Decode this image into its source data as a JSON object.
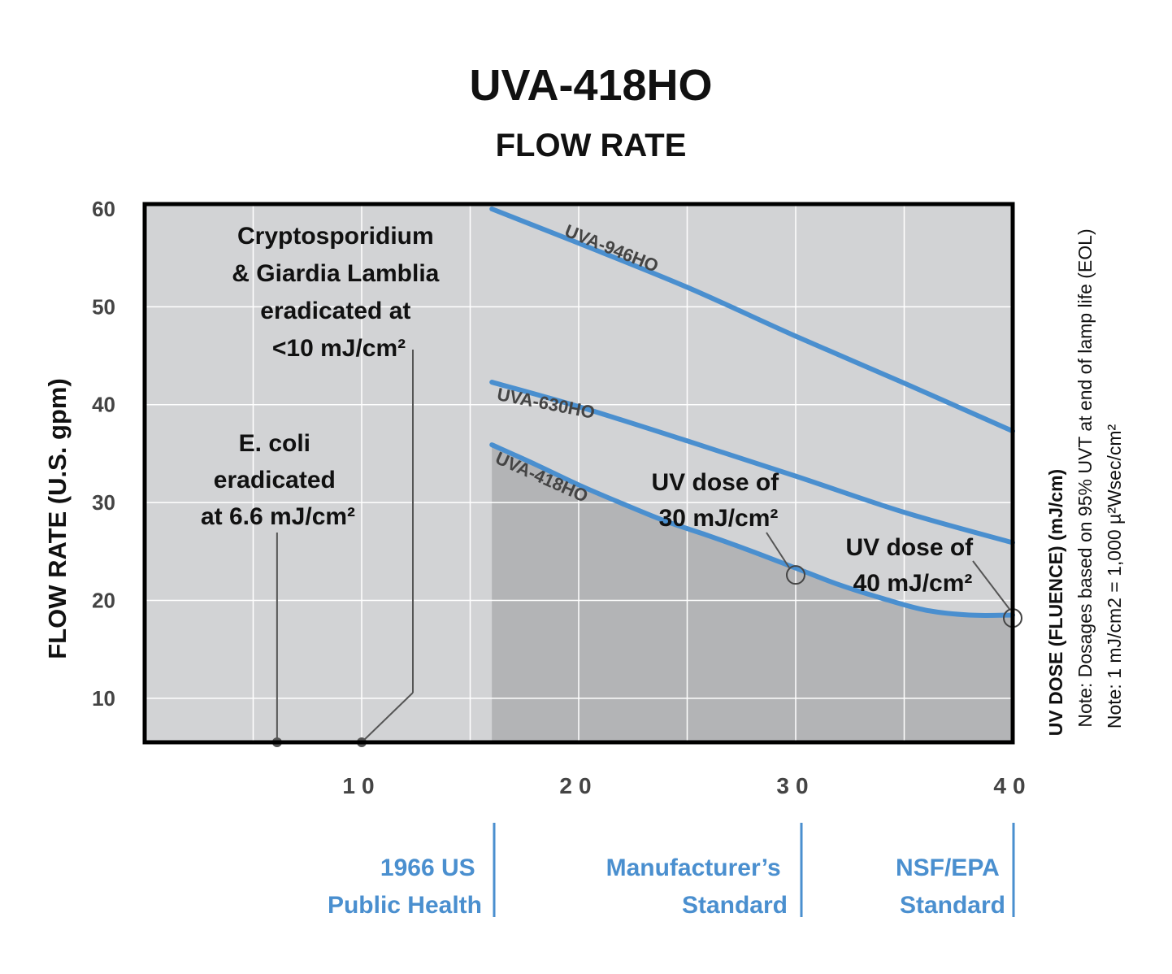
{
  "chart_data": {
    "type": "line",
    "title": "UVA-418HO",
    "subtitle": "FLOW RATE",
    "ylabel": "FLOW RATE (U.S. gpm)",
    "xlabel": "UV DOSE (FLUENCE) (mJ/cm)",
    "notes": [
      "Note: Dosages based on 95% UVT at end of lamp life (EOL)",
      "Note: 1 mJ/cm2 = 1,000 µ²Wsec/cm²"
    ],
    "xlim": [
      0,
      40
    ],
    "ylim": [
      5.5,
      60.5
    ],
    "xticks": [
      "10",
      "20",
      "30",
      "40"
    ],
    "xtick_values": [
      10,
      20,
      30,
      40
    ],
    "yticks": [
      "10",
      "20",
      "30",
      "40",
      "50",
      "60"
    ],
    "ytick_values": [
      10,
      20,
      30,
      40,
      50,
      60
    ],
    "grid": true,
    "series": [
      {
        "name": "UVA-946HO",
        "color": "#4a8fcf",
        "x": [
          16,
          20,
          25,
          30,
          35,
          40
        ],
        "y": [
          60,
          56.5,
          52,
          47,
          42.2,
          37.3
        ]
      },
      {
        "name": "UVA-630HO",
        "color": "#4a8fcf",
        "x": [
          16,
          20,
          25,
          30,
          35,
          40
        ],
        "y": [
          42.3,
          39.8,
          36.3,
          32.7,
          29,
          25.9
        ]
      },
      {
        "name": "UVA-418HO",
        "color": "#4a8fcf",
        "shaded": true,
        "x": [
          16,
          18,
          20,
          22,
          24,
          26,
          28,
          30,
          32,
          34,
          36,
          38,
          40
        ],
        "y": [
          35.9,
          33.9,
          31.8,
          29.9,
          28.1,
          26.6,
          25,
          23.3,
          21.6,
          20.2,
          19,
          18.5,
          18.5
        ]
      }
    ],
    "annotations": [
      {
        "lines": [
          "Cryptosporidium",
          "& Giardia Lamblia",
          "eradicated at",
          "<10 mJ/cm²"
        ],
        "x": 10,
        "y": 5.5
      },
      {
        "lines": [
          "E. coli",
          "eradicated",
          "at 6.6 mJ/cm²"
        ],
        "x": 6.1,
        "y": 5.5
      },
      {
        "lines": [
          "UV dose of",
          "30 mJ/cm²"
        ],
        "x": 30,
        "y": 22.6
      },
      {
        "lines": [
          "UV dose of",
          "40 mJ/cm²"
        ],
        "x": 40,
        "y": 18.2
      }
    ],
    "standards": [
      {
        "lines": [
          "1966 US",
          "Public Health"
        ],
        "x": 16
      },
      {
        "lines": [
          "Manufacturer’s",
          "Standard"
        ],
        "x": 30.2
      },
      {
        "lines": [
          "NSF/EPA",
          "Standard"
        ],
        "x": 40
      }
    ],
    "colors": {
      "curve": "#4a8fcf",
      "plot_bg": "#d2d3d5",
      "shade": "#b3b4b6",
      "standard_text": "#4a8fcf"
    }
  }
}
